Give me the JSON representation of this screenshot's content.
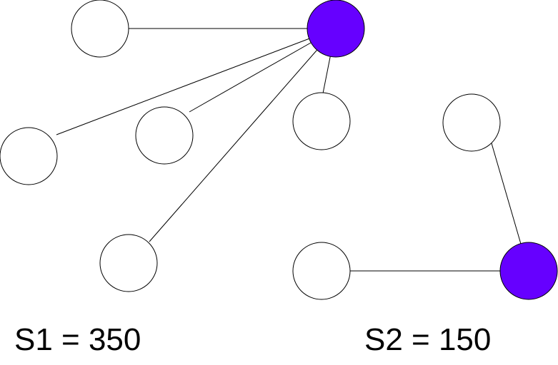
{
  "colors": {
    "hub_fill": "#6600ff",
    "node_fill": "#ffffff",
    "stroke": "#000000"
  },
  "graphs": [
    {
      "label": "S1 = 350",
      "hub": "filled-circle",
      "leaf_count": 5
    },
    {
      "label": "S2 = 150",
      "hub": "filled-circle",
      "leaf_count": 2
    }
  ]
}
